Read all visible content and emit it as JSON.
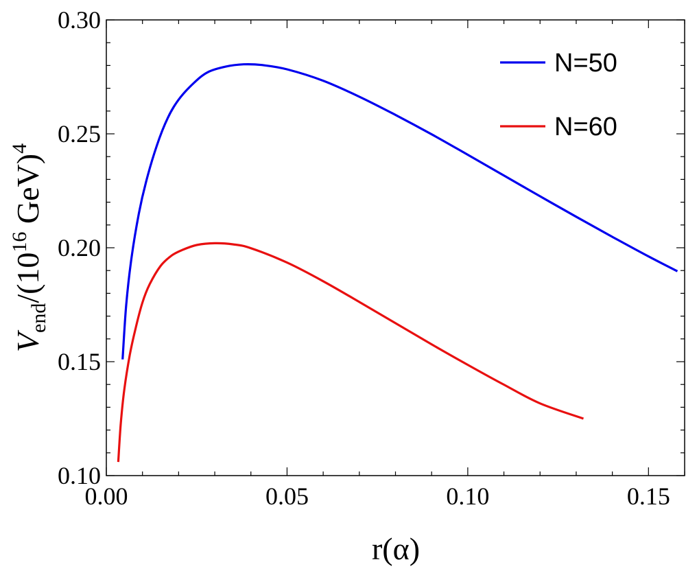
{
  "chart_data": {
    "type": "line",
    "title": "",
    "xlabel": "r(α)",
    "ylabel": {
      "var": "V",
      "sub": "end",
      "text": "/(10",
      "sup": "16",
      "unit": " GeV)",
      "sup2": "4"
    },
    "xlim": [
      0.0,
      0.16
    ],
    "ylim": [
      0.1,
      0.3
    ],
    "x_ticks": [
      0.0,
      0.05,
      0.1,
      0.15
    ],
    "x_tick_labels": [
      "0.00",
      "0.05",
      "0.10",
      "0.15"
    ],
    "y_ticks": [
      0.1,
      0.15,
      0.2,
      0.25,
      0.3
    ],
    "y_tick_labels": [
      "0.10",
      "0.15",
      "0.20",
      "0.25",
      "0.30"
    ],
    "legend_position": "top-right",
    "series": [
      {
        "name": "N=50",
        "color": "#0000ee",
        "x": [
          0.0045,
          0.0055,
          0.007,
          0.009,
          0.011,
          0.014,
          0.017,
          0.02,
          0.024,
          0.028,
          0.033,
          0.038,
          0.043,
          0.05,
          0.06,
          0.07,
          0.08,
          0.09,
          0.1,
          0.11,
          0.12,
          0.13,
          0.14,
          0.15,
          0.158
        ],
        "y": [
          0.151,
          0.175,
          0.196,
          0.215,
          0.229,
          0.245,
          0.257,
          0.265,
          0.272,
          0.277,
          0.2795,
          0.2805,
          0.2802,
          0.2783,
          0.2733,
          0.2663,
          0.2583,
          0.2498,
          0.2408,
          0.2317,
          0.2226,
          0.2136,
          0.2048,
          0.1962,
          0.1897
        ]
      },
      {
        "name": "N=60",
        "color": "#e81010",
        "x": [
          0.0033,
          0.004,
          0.005,
          0.0065,
          0.008,
          0.01,
          0.012,
          0.015,
          0.018,
          0.021,
          0.025,
          0.03,
          0.035,
          0.04,
          0.05,
          0.06,
          0.07,
          0.08,
          0.09,
          0.1,
          0.11,
          0.12,
          0.132
        ],
        "y": [
          0.106,
          0.123,
          0.138,
          0.153,
          0.164,
          0.176,
          0.184,
          0.192,
          0.1965,
          0.199,
          0.2012,
          0.202,
          0.2015,
          0.1998,
          0.1935,
          0.1853,
          0.1762,
          0.1669,
          0.1576,
          0.1486,
          0.1399,
          0.1317,
          0.125
        ]
      }
    ]
  }
}
